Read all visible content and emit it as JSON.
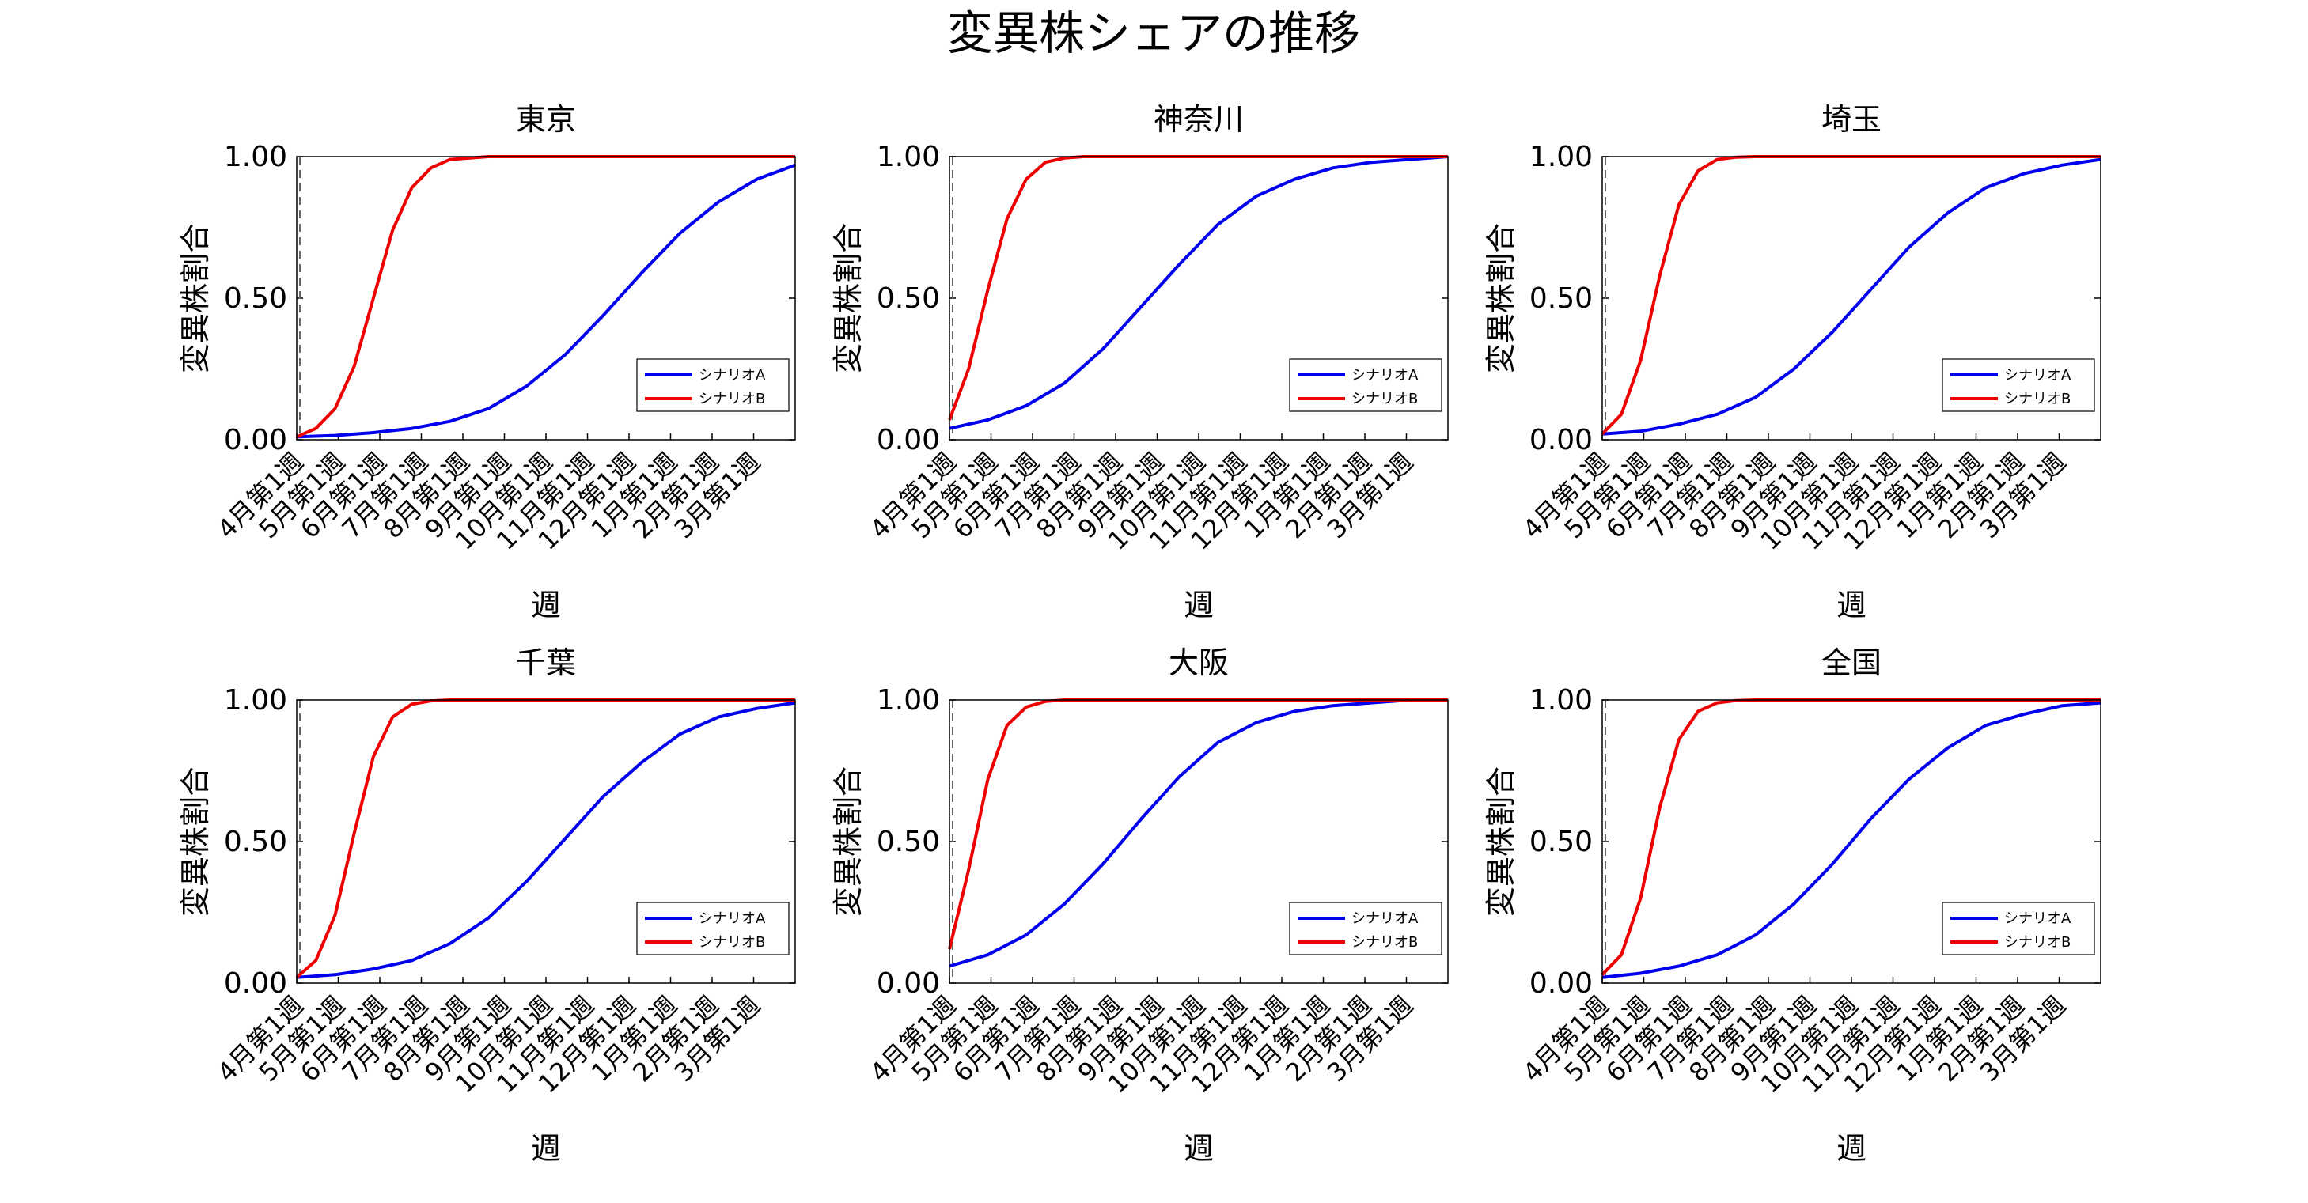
{
  "figure": {
    "title": "変異株シェアの推移"
  },
  "colors": {
    "scenario_a": "#0000ee",
    "scenario_b": "#ee0000",
    "marker": "#666666"
  },
  "chart_data": [
    {
      "type": "line",
      "title": "東京",
      "xlabel": "週",
      "ylabel": "変異株割合",
      "categories": [
        "4月第1週",
        "5月第1週",
        "6月第1週",
        "7月第1週",
        "8月第1週",
        "9月第1週",
        "10月第1週",
        "11月第1週",
        "12月第1週",
        "1月第1週",
        "2月第1週",
        "3月第1週"
      ],
      "yticks": [
        "0.00",
        "0.50",
        "1.00"
      ],
      "ylim": [
        0,
        1
      ],
      "weeks": 52,
      "marker_week": 0,
      "legend_loc": "lower right",
      "grid": false,
      "series": [
        {
          "name": "シナリオA",
          "x": [
            0,
            4,
            8,
            12,
            16,
            20,
            24,
            28,
            32,
            36,
            40,
            44,
            48,
            52
          ],
          "values": [
            0.01,
            0.015,
            0.025,
            0.04,
            0.065,
            0.11,
            0.19,
            0.3,
            0.44,
            0.59,
            0.73,
            0.84,
            0.92,
            0.97
          ]
        },
        {
          "name": "シナリオB",
          "x": [
            0,
            2,
            4,
            6,
            8,
            10,
            12,
            14,
            16,
            20,
            24,
            52
          ],
          "values": [
            0.01,
            0.04,
            0.11,
            0.26,
            0.5,
            0.74,
            0.89,
            0.96,
            0.99,
            1.0,
            1.0,
            1.0
          ]
        }
      ]
    },
    {
      "type": "line",
      "title": "神奈川",
      "xlabel": "週",
      "ylabel": "変異株割合",
      "categories": [
        "4月第1週",
        "5月第1週",
        "6月第1週",
        "7月第1週",
        "8月第1週",
        "9月第1週",
        "10月第1週",
        "11月第1週",
        "12月第1週",
        "1月第1週",
        "2月第1週",
        "3月第1週"
      ],
      "yticks": [
        "0.00",
        "0.50",
        "1.00"
      ],
      "ylim": [
        0,
        1
      ],
      "weeks": 52,
      "marker_week": 0,
      "legend_loc": "lower right",
      "grid": false,
      "series": [
        {
          "name": "シナリオA",
          "x": [
            0,
            4,
            8,
            12,
            16,
            20,
            24,
            28,
            32,
            36,
            40,
            44,
            48,
            52
          ],
          "values": [
            0.04,
            0.07,
            0.12,
            0.2,
            0.32,
            0.47,
            0.62,
            0.76,
            0.86,
            0.92,
            0.96,
            0.98,
            0.99,
            1.0
          ]
        },
        {
          "name": "シナリオB",
          "x": [
            0,
            2,
            4,
            6,
            8,
            10,
            12,
            14,
            20,
            52
          ],
          "values": [
            0.07,
            0.25,
            0.53,
            0.78,
            0.92,
            0.98,
            0.995,
            1.0,
            1.0,
            1.0
          ]
        }
      ]
    },
    {
      "type": "line",
      "title": "埼玉",
      "xlabel": "週",
      "ylabel": "変異株割合",
      "categories": [
        "4月第1週",
        "5月第1週",
        "6月第1週",
        "7月第1週",
        "8月第1週",
        "9月第1週",
        "10月第1週",
        "11月第1週",
        "12月第1週",
        "1月第1週",
        "2月第1週",
        "3月第1週"
      ],
      "yticks": [
        "0.00",
        "0.50",
        "1.00"
      ],
      "ylim": [
        0,
        1
      ],
      "weeks": 52,
      "marker_week": 0,
      "legend_loc": "lower right",
      "grid": false,
      "series": [
        {
          "name": "シナリオA",
          "x": [
            0,
            4,
            8,
            12,
            16,
            20,
            24,
            28,
            32,
            36,
            40,
            44,
            48,
            52
          ],
          "values": [
            0.02,
            0.03,
            0.055,
            0.09,
            0.15,
            0.25,
            0.38,
            0.53,
            0.68,
            0.8,
            0.89,
            0.94,
            0.97,
            0.99
          ]
        },
        {
          "name": "シナリオB",
          "x": [
            0,
            2,
            4,
            6,
            8,
            10,
            12,
            14,
            16,
            20,
            52
          ],
          "values": [
            0.02,
            0.09,
            0.28,
            0.58,
            0.83,
            0.95,
            0.99,
            0.998,
            1.0,
            1.0,
            1.0
          ]
        }
      ]
    },
    {
      "type": "line",
      "title": "千葉",
      "xlabel": "週",
      "ylabel": "変異株割合",
      "categories": [
        "4月第1週",
        "5月第1週",
        "6月第1週",
        "7月第1週",
        "8月第1週",
        "9月第1週",
        "10月第1週",
        "11月第1週",
        "12月第1週",
        "1月第1週",
        "2月第1週",
        "3月第1週"
      ],
      "yticks": [
        "0.00",
        "0.50",
        "1.00"
      ],
      "ylim": [
        0,
        1
      ],
      "weeks": 52,
      "marker_week": 0,
      "legend_loc": "lower right",
      "grid": false,
      "series": [
        {
          "name": "シナリオA",
          "x": [
            0,
            4,
            8,
            12,
            16,
            20,
            24,
            28,
            32,
            36,
            40,
            44,
            48,
            52
          ],
          "values": [
            0.02,
            0.03,
            0.05,
            0.08,
            0.14,
            0.23,
            0.36,
            0.51,
            0.66,
            0.78,
            0.88,
            0.94,
            0.97,
            0.99
          ]
        },
        {
          "name": "シナリオB",
          "x": [
            0,
            2,
            4,
            6,
            8,
            10,
            12,
            14,
            16,
            20,
            52
          ],
          "values": [
            0.02,
            0.08,
            0.24,
            0.53,
            0.8,
            0.94,
            0.985,
            0.997,
            1.0,
            1.0,
            1.0
          ]
        }
      ]
    },
    {
      "type": "line",
      "title": "大阪",
      "xlabel": "週",
      "ylabel": "変異株割合",
      "categories": [
        "4月第1週",
        "5月第1週",
        "6月第1週",
        "7月第1週",
        "8月第1週",
        "9月第1週",
        "10月第1週",
        "11月第1週",
        "12月第1週",
        "1月第1週",
        "2月第1週",
        "3月第1週"
      ],
      "yticks": [
        "0.00",
        "0.50",
        "1.00"
      ],
      "ylim": [
        0,
        1
      ],
      "weeks": 52,
      "marker_week": 0,
      "legend_loc": "lower right",
      "grid": false,
      "series": [
        {
          "name": "シナリオA",
          "x": [
            0,
            4,
            8,
            12,
            16,
            20,
            24,
            28,
            32,
            36,
            40,
            44,
            48,
            52
          ],
          "values": [
            0.06,
            0.1,
            0.17,
            0.28,
            0.42,
            0.58,
            0.73,
            0.85,
            0.92,
            0.96,
            0.98,
            0.99,
            1.0,
            1.0
          ]
        },
        {
          "name": "シナリオB",
          "x": [
            0,
            2,
            4,
            6,
            8,
            10,
            12,
            14,
            20,
            52
          ],
          "values": [
            0.12,
            0.4,
            0.72,
            0.91,
            0.975,
            0.995,
            1.0,
            1.0,
            1.0,
            1.0
          ]
        }
      ]
    },
    {
      "type": "line",
      "title": "全国",
      "xlabel": "週",
      "ylabel": "変異株割合",
      "categories": [
        "4月第1週",
        "5月第1週",
        "6月第1週",
        "7月第1週",
        "8月第1週",
        "9月第1週",
        "10月第1週",
        "11月第1週",
        "12月第1週",
        "1月第1週",
        "2月第1週",
        "3月第1週"
      ],
      "yticks": [
        "0.00",
        "0.50",
        "1.00"
      ],
      "ylim": [
        0,
        1
      ],
      "weeks": 52,
      "marker_week": 0,
      "legend_loc": "lower right",
      "grid": false,
      "series": [
        {
          "name": "シナリオA",
          "x": [
            0,
            4,
            8,
            12,
            16,
            20,
            24,
            28,
            32,
            36,
            40,
            44,
            48,
            52
          ],
          "values": [
            0.02,
            0.035,
            0.06,
            0.1,
            0.17,
            0.28,
            0.42,
            0.58,
            0.72,
            0.83,
            0.91,
            0.95,
            0.98,
            0.99
          ]
        },
        {
          "name": "シナリオB",
          "x": [
            0,
            2,
            4,
            6,
            8,
            10,
            12,
            14,
            16,
            20,
            52
          ],
          "values": [
            0.03,
            0.1,
            0.3,
            0.62,
            0.86,
            0.96,
            0.99,
            0.998,
            1.0,
            1.0,
            1.0
          ]
        }
      ]
    }
  ]
}
